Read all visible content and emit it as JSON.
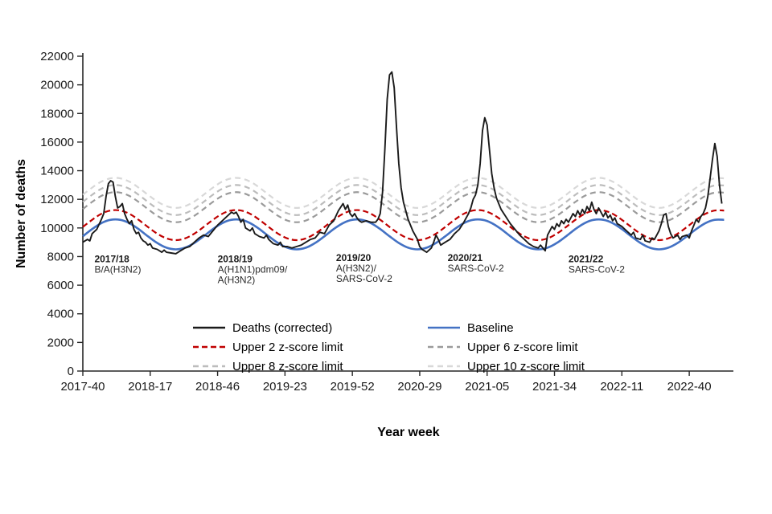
{
  "chart_data": {
    "type": "line",
    "title": "",
    "xlabel": "Year week",
    "ylabel": "Number of deaths",
    "xlim": [
      0,
      280
    ],
    "ylim": [
      0,
      22000
    ],
    "ytick_step": 2000,
    "yticks": [
      0,
      2000,
      4000,
      6000,
      8000,
      10000,
      12000,
      14000,
      16000,
      18000,
      20000,
      22000
    ],
    "grid": false,
    "legend_position": "inside-bottom",
    "axis_color": "#262626",
    "tick_label_color": "#1a1a1a",
    "x_unit": "weeks since 2017-40",
    "xticks": [
      {
        "t": 0,
        "label": "2017-40"
      },
      {
        "t": 29,
        "label": "2018-17"
      },
      {
        "t": 58,
        "label": "2018-46"
      },
      {
        "t": 87,
        "label": "2019-23"
      },
      {
        "t": 116,
        "label": "2019-52"
      },
      {
        "t": 145,
        "label": "2020-29"
      },
      {
        "t": 174,
        "label": "2021-05"
      },
      {
        "t": 203,
        "label": "2021-34"
      },
      {
        "t": 232,
        "label": "2022-11"
      },
      {
        "t": 261,
        "label": "2022-40"
      }
    ],
    "x_smooth": [
      0,
      4,
      8,
      12,
      16,
      20,
      24,
      28,
      32,
      36,
      40,
      44,
      48,
      52,
      56,
      60,
      64,
      68,
      72,
      76,
      80,
      84,
      88,
      92,
      96,
      100,
      104,
      108,
      112,
      116,
      120,
      124,
      128,
      132,
      136,
      140,
      144,
      148,
      152,
      156,
      160,
      164,
      168,
      172,
      176,
      180,
      184,
      188,
      192,
      196,
      200,
      204,
      208,
      212,
      216,
      220,
      224,
      228,
      232,
      236,
      240,
      244,
      248,
      252,
      256,
      260,
      264,
      268,
      272,
      276
    ],
    "series": [
      {
        "name": "Deaths (corrected)",
        "color": "#1a1a1a",
        "style": "solid",
        "width": 1.9,
        "dash": "",
        "smooth": false,
        "x": [
          0,
          2,
          3,
          4,
          6,
          8,
          9,
          10,
          11,
          12,
          13,
          14,
          15,
          16,
          17,
          18,
          19,
          20,
          21,
          22,
          23,
          24,
          25,
          26,
          27,
          28,
          29,
          30,
          32,
          34,
          35,
          36,
          38,
          40,
          42,
          44,
          46,
          48,
          50,
          52,
          54,
          56,
          58,
          60,
          62,
          64,
          65,
          66,
          67,
          68,
          69,
          70,
          72,
          73,
          74,
          76,
          78,
          79,
          80,
          82,
          84,
          85,
          86,
          88,
          90,
          92,
          94,
          96,
          98,
          100,
          102,
          104,
          106,
          108,
          110,
          112,
          113,
          114,
          115,
          116,
          117,
          118,
          119,
          120,
          122,
          124,
          126,
          127,
          128,
          129,
          130,
          131,
          132,
          133,
          134,
          135,
          136,
          137,
          138,
          140,
          142,
          144,
          145,
          146,
          148,
          150,
          151,
          152,
          153,
          154,
          156,
          158,
          160,
          162,
          164,
          165,
          166,
          167,
          168,
          169,
          170,
          171,
          172,
          173,
          174,
          175,
          176,
          177,
          178,
          180,
          182,
          184,
          186,
          188,
          190,
          192,
          194,
          196,
          197,
          198,
          199,
          200,
          201,
          202,
          203,
          204,
          205,
          206,
          207,
          208,
          209,
          210,
          211,
          212,
          213,
          214,
          215,
          216,
          217,
          218,
          219,
          220,
          221,
          222,
          223,
          224,
          225,
          226,
          227,
          228,
          229,
          230,
          232,
          234,
          236,
          237,
          238,
          240,
          241,
          242,
          244,
          245,
          246,
          247,
          248,
          249,
          250,
          251,
          252,
          253,
          254,
          256,
          257,
          258,
          260,
          261,
          262,
          263,
          264,
          265,
          266,
          267,
          268,
          269,
          270,
          271,
          272,
          273,
          274,
          275
        ],
        "y": [
          9000,
          9200,
          9100,
          9600,
          9900,
          10600,
          11000,
          12200,
          13100,
          13300,
          13200,
          12200,
          11400,
          11500,
          11700,
          11000,
          10600,
          10300,
          10500,
          9900,
          9600,
          9700,
          9300,
          9100,
          9000,
          8800,
          8900,
          8600,
          8500,
          8300,
          8450,
          8300,
          8250,
          8200,
          8400,
          8600,
          8700,
          9000,
          9300,
          9500,
          9400,
          9800,
          10200,
          10500,
          10800,
          11100,
          11000,
          11100,
          10800,
          10400,
          10600,
          10000,
          9800,
          10000,
          9600,
          9400,
          9300,
          9500,
          9200,
          8900,
          8800,
          9000,
          8700,
          8700,
          8600,
          8700,
          8800,
          9000,
          9200,
          9300,
          9700,
          9600,
          10200,
          10500,
          11200,
          11700,
          11300,
          11600,
          11000,
          10800,
          11000,
          10700,
          10500,
          10400,
          10500,
          10400,
          10400,
          10600,
          11000,
          12500,
          15500,
          19000,
          20700,
          20900,
          19800,
          17000,
          14500,
          12800,
          11800,
          10600,
          9800,
          9200,
          8700,
          8500,
          8300,
          8600,
          9000,
          9500,
          9200,
          8800,
          9000,
          9200,
          9600,
          9900,
          10400,
          10700,
          11000,
          11400,
          12000,
          12300,
          13000,
          14500,
          16800,
          17700,
          17200,
          15500,
          13800,
          12800,
          12100,
          11300,
          10800,
          10300,
          9900,
          9500,
          9200,
          8900,
          8700,
          8600,
          8800,
          8600,
          8400,
          9500,
          9800,
          10100,
          9900,
          10300,
          10100,
          10500,
          10300,
          10600,
          10400,
          10700,
          11000,
          10800,
          11200,
          10900,
          11300,
          11000,
          11500,
          11200,
          11800,
          11300,
          11000,
          11400,
          11100,
          10800,
          11100,
          10700,
          10900,
          10500,
          10700,
          10300,
          10100,
          9800,
          9500,
          9700,
          9300,
          9200,
          9500,
          9100,
          9000,
          9300,
          9200,
          9500,
          9800,
          10300,
          10900,
          11000,
          10100,
          9600,
          9300,
          9500,
          9200,
          9400,
          9500,
          9300,
          9800,
          10200,
          10600,
          10400,
          10800,
          11000,
          11400,
          12200,
          13500,
          14800,
          15900,
          15000,
          13000,
          11700
        ]
      },
      {
        "name": "Baseline",
        "color": "#4472c4",
        "style": "solid",
        "width": 2.6,
        "dash": "",
        "smooth": true,
        "x_ref": "x_smooth",
        "y": [
          9420,
          9920,
          10340,
          10570,
          10570,
          10340,
          9920,
          9420,
          8950,
          8620,
          8500,
          8620,
          8950,
          9420,
          9920,
          10340,
          10570,
          10570,
          10340,
          9920,
          9420,
          8950,
          8620,
          8500,
          8620,
          8950,
          9420,
          9920,
          10340,
          10570,
          10570,
          10340,
          9920,
          9420,
          8950,
          8620,
          8500,
          8620,
          8950,
          9420,
          9920,
          10340,
          10570,
          10570,
          10340,
          9920,
          9420,
          8950,
          8620,
          8500,
          8620,
          8950,
          9420,
          9920,
          10340,
          10570,
          10570,
          10340,
          9920,
          9420,
          8950,
          8620,
          8500,
          8620,
          8950,
          9420,
          9920,
          10340,
          10570,
          10570
        ]
      },
      {
        "name": "Upper 2 z-score limit",
        "color": "#c00000",
        "style": "dashed",
        "width": 2.2,
        "dash": "7 4",
        "smooth": true,
        "x_ref": "x_smooth",
        "y": [
          10070,
          10570,
          10990,
          11220,
          11220,
          10990,
          10570,
          10070,
          9600,
          9270,
          9150,
          9270,
          9600,
          10070,
          10570,
          10990,
          11220,
          11220,
          10990,
          10570,
          10070,
          9600,
          9270,
          9150,
          9270,
          9600,
          10070,
          10570,
          10990,
          11220,
          11220,
          10990,
          10570,
          10070,
          9600,
          9270,
          9150,
          9270,
          9600,
          10070,
          10570,
          10990,
          11220,
          11220,
          10990,
          10570,
          10070,
          9600,
          9270,
          9150,
          9270,
          9600,
          10070,
          10570,
          10990,
          11220,
          11220,
          10990,
          10570,
          10070,
          9600,
          9270,
          9150,
          9270,
          9600,
          10070,
          10570,
          10990,
          11220,
          11220
        ]
      },
      {
        "name": "Upper 6 z-score limit",
        "color": "#9a9a9a",
        "style": "dashed",
        "width": 2.2,
        "dash": "7 5",
        "smooth": true,
        "x_ref": "x_smooth",
        "y": [
          11320,
          11820,
          12240,
          12470,
          12470,
          12240,
          11820,
          11320,
          10850,
          10520,
          10400,
          10520,
          10850,
          11320,
          11820,
          12240,
          12470,
          12470,
          12240,
          11820,
          11320,
          10850,
          10520,
          10400,
          10520,
          10850,
          11320,
          11820,
          12240,
          12470,
          12470,
          12240,
          11820,
          11320,
          10850,
          10520,
          10400,
          10520,
          10850,
          11320,
          11820,
          12240,
          12470,
          12470,
          12240,
          11820,
          11320,
          10850,
          10520,
          10400,
          10520,
          10850,
          11320,
          11820,
          12240,
          12470,
          12470,
          12240,
          11820,
          11320,
          10850,
          10520,
          10400,
          10520,
          10850,
          11320,
          11820,
          12240,
          12470,
          12470
        ]
      },
      {
        "name": "Upper 8 z-score limit",
        "color": "#bcbcbc",
        "style": "dashed",
        "width": 2.2,
        "dash": "7 5",
        "smooth": true,
        "x_ref": "x_smooth",
        "y": [
          11820,
          12320,
          12740,
          12970,
          12970,
          12740,
          12320,
          11820,
          11350,
          11020,
          10900,
          11020,
          11350,
          11820,
          12320,
          12740,
          12970,
          12970,
          12740,
          12320,
          11820,
          11350,
          11020,
          10900,
          11020,
          11350,
          11820,
          12320,
          12740,
          12970,
          12970,
          12740,
          12320,
          11820,
          11350,
          11020,
          10900,
          11020,
          11350,
          11820,
          12320,
          12740,
          12970,
          12970,
          12740,
          12320,
          11820,
          11350,
          11020,
          10900,
          11020,
          11350,
          11820,
          12320,
          12740,
          12970,
          12970,
          12740,
          12320,
          11820,
          11350,
          11020,
          10900,
          11020,
          11350,
          11820,
          12320,
          12740,
          12970,
          12970
        ]
      },
      {
        "name": "Upper 10 z-score limit",
        "color": "#d8d8d8",
        "style": "dashed",
        "width": 2.2,
        "dash": "7 5",
        "smooth": true,
        "x_ref": "x_smooth",
        "y": [
          12320,
          12820,
          13240,
          13470,
          13470,
          13240,
          12820,
          12320,
          11850,
          11520,
          11400,
          11520,
          11850,
          12320,
          12820,
          13240,
          13470,
          13470,
          13240,
          12820,
          12320,
          11850,
          11520,
          11400,
          11520,
          11850,
          12320,
          12820,
          13240,
          13470,
          13470,
          13240,
          12820,
          12320,
          11850,
          11520,
          11400,
          11520,
          11850,
          12320,
          12820,
          13240,
          13470,
          13470,
          13240,
          12820,
          12320,
          11850,
          11520,
          11400,
          11520,
          11850,
          12320,
          12820,
          13240,
          13470,
          13470,
          13240,
          12820,
          12320,
          11850,
          11520,
          11400,
          11520,
          11850,
          12320,
          12820,
          13240,
          13470,
          13470
        ]
      }
    ],
    "annotations": [
      {
        "title": "2017/18",
        "lines": [
          "B/A(H3N2)"
        ],
        "t": 5,
        "v": 7600
      },
      {
        "title": "2018/19",
        "lines": [
          "A(H1N1)pdm09/",
          "A(H3N2)"
        ],
        "t": 58,
        "v": 7600
      },
      {
        "title": "2019/20",
        "lines": [
          "A(H3N2)/",
          "SARS-CoV-2"
        ],
        "t": 109,
        "v": 7700
      },
      {
        "title": "2020/21",
        "lines": [
          "SARS-CoV-2"
        ],
        "t": 157,
        "v": 7700
      },
      {
        "title": "2021/22",
        "lines": [
          "SARS-CoV-2"
        ],
        "t": 209,
        "v": 7600
      }
    ]
  }
}
